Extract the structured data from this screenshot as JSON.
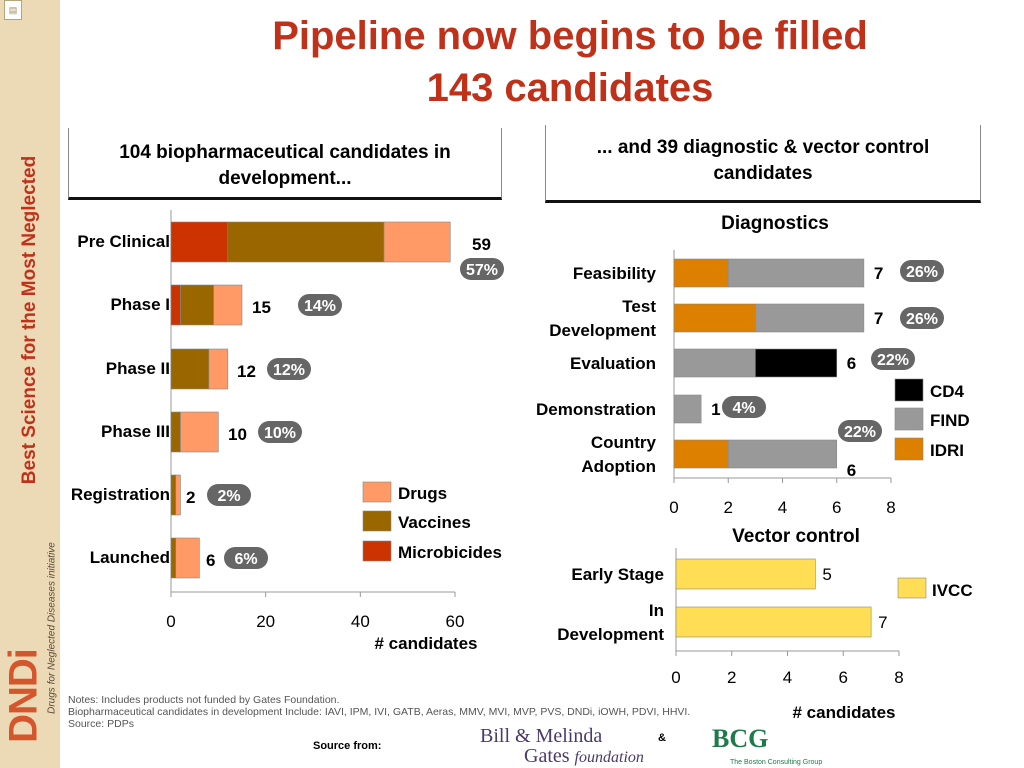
{
  "sidebar": {
    "corner_icon": "document-icon",
    "vertical_text": "Best Science for the Most Neglected",
    "subtitle": "Drugs for Neglected Diseases initiative",
    "logo": "DNDi"
  },
  "title": {
    "line1": "Pipeline now begins to be filled",
    "line2": "143 candidates"
  },
  "left_box": "104 biopharmaceutical candidates in development...",
  "right_box": "... and 39 diagnostic & vector control candidates",
  "colors": {
    "drugs": "#ff9966",
    "vaccines": "#996600",
    "microbicides": "#cc3300",
    "cd4": "#000000",
    "find": "#999999",
    "idri": "#dd8000",
    "ivcc": "#ffdd55",
    "title": "#c0311a",
    "pill": "#666666"
  },
  "chart_data": [
    {
      "type": "bar",
      "orientation": "horizontal",
      "stacked": true,
      "categories": [
        "Pre Clinical",
        "Phase I",
        "Phase II",
        "Phase III",
        "Registration",
        "Launched"
      ],
      "series": [
        {
          "name": "Microbicides",
          "values": [
            12,
            2,
            0,
            0,
            0,
            0
          ]
        },
        {
          "name": "Vaccines",
          "values": [
            33,
            7,
            8,
            2,
            1,
            1
          ]
        },
        {
          "name": "Drugs",
          "values": [
            14,
            6,
            4,
            8,
            1,
            5
          ]
        }
      ],
      "totals": [
        "59",
        "15",
        "12",
        "10",
        "2",
        "6"
      ],
      "percents": [
        "57%",
        "14%",
        "12%",
        "10%",
        "2%",
        "6%"
      ],
      "xticks": [
        "0",
        "20",
        "40",
        "60"
      ],
      "xlim": [
        0,
        60
      ],
      "xlabel": "# candidates",
      "legend": [
        "Drugs",
        "Vaccines",
        "Microbicides"
      ],
      "legend_position": "bottom-right"
    },
    {
      "type": "bar",
      "orientation": "horizontal",
      "stacked": true,
      "title": "Diagnostics",
      "categories": [
        "Feasibility",
        "Test Development",
        "Evaluation",
        "Demonstration",
        "Country Adoption"
      ],
      "series": [
        {
          "name": "IDRI",
          "values": [
            2,
            3,
            0,
            0,
            2
          ]
        },
        {
          "name": "FIND",
          "values": [
            5,
            4,
            3,
            1,
            4
          ]
        },
        {
          "name": "CD4",
          "values": [
            0,
            0,
            3,
            0,
            0
          ]
        }
      ],
      "totals": [
        "7",
        "7",
        "6",
        "1",
        "6"
      ],
      "percents": [
        "26%",
        "26%",
        "22%",
        "4%",
        "22%"
      ],
      "xticks": [
        "0",
        "2",
        "4",
        "6",
        "8"
      ],
      "xlim": [
        0,
        8
      ],
      "legend": [
        "CD4",
        "FIND",
        "IDRI"
      ],
      "legend_position": "right"
    },
    {
      "type": "bar",
      "orientation": "horizontal",
      "title": "Vector control",
      "categories": [
        "Early Stage",
        "In Development"
      ],
      "series": [
        {
          "name": "IVCC",
          "values": [
            5,
            7
          ]
        }
      ],
      "totals": [
        "5",
        "7"
      ],
      "xticks": [
        "0",
        "2",
        "4",
        "6",
        "8"
      ],
      "xlim": [
        0,
        8
      ],
      "xlabel": "# candidates",
      "legend": [
        "IVCC"
      ],
      "legend_position": "right"
    }
  ],
  "notes": {
    "line1": "Notes:  Includes products not funded by Gates Foundation.",
    "line2": "Biopharmaceutical candidates in development Include: IAVI, IPM, IVI, GATB, Aeras, MMV, MVI, MVP, PVS, DNDi, iOWH, PDVI, HHVI.",
    "line3": "Source: PDPs"
  },
  "footer": {
    "source_label": "Source from:",
    "gates_line1": "Bill & Melinda",
    "gates_line2": "Gates",
    "gates_foundation": "foundation",
    "amp": "&",
    "bcg": "BCG",
    "bcg_sub": "The Boston Consulting Group"
  }
}
